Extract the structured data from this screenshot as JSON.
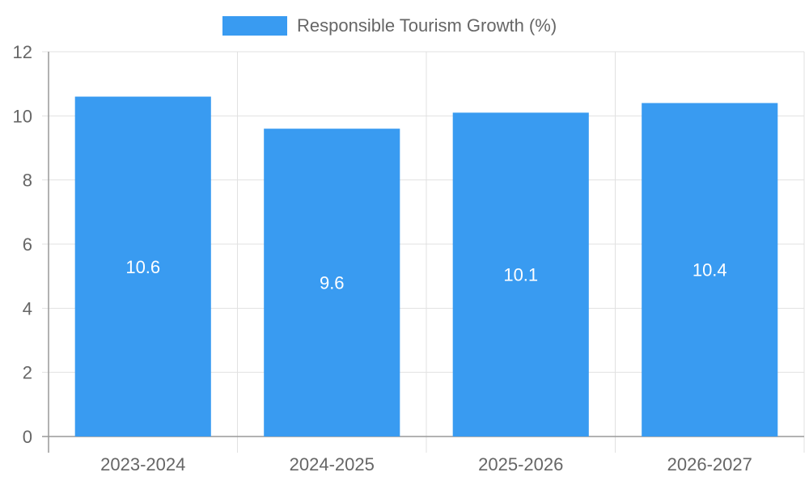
{
  "chart_data": {
    "type": "bar",
    "categories": [
      "2023-2024",
      "2024-2025",
      "2025-2026",
      "2026-2027"
    ],
    "series": [
      {
        "name": "Responsible Tourism Growth (%)",
        "values": [
          10.6,
          9.6,
          10.1,
          10.4
        ],
        "color": "#399bf1"
      }
    ],
    "ylim": [
      0,
      12
    ],
    "yticks": [
      0,
      2,
      4,
      6,
      8,
      10,
      12
    ],
    "grid": true,
    "legend_position": "top-center",
    "data_labels": true
  }
}
